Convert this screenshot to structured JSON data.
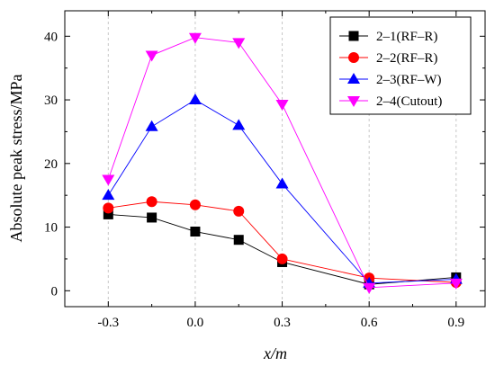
{
  "chart_data": {
    "type": "line",
    "xlabel": "x/m",
    "ylabel": "Absolute peak stress/MPa",
    "xlim": [
      -0.45,
      1.0
    ],
    "ylim": [
      -2.5,
      44
    ],
    "xticks": [
      -0.3,
      0.0,
      0.3,
      0.6,
      0.9
    ],
    "xtick_labels": [
      "-0.3",
      "0.0",
      "0.3",
      "0.6",
      "0.9"
    ],
    "yticks": [
      0,
      10,
      20,
      30,
      40
    ],
    "ytick_labels": [
      "0",
      "10",
      "20",
      "30",
      "40"
    ],
    "x": [
      -0.3,
      -0.15,
      0.0,
      0.15,
      0.3,
      0.6,
      0.9
    ],
    "grid": "vertical dashed at x ticks",
    "legend_position": "top-right",
    "series": [
      {
        "name": "2–1(RF–R)",
        "color": "#000000",
        "marker": "square",
        "values": [
          12.0,
          11.5,
          9.3,
          8.0,
          4.5,
          1.0,
          2.1
        ]
      },
      {
        "name": "2–2(RF–R)",
        "color": "#ff0000",
        "marker": "circle",
        "values": [
          13.0,
          14.0,
          13.5,
          12.5,
          5.0,
          2.0,
          1.3
        ]
      },
      {
        "name": "2–3(RF–W)",
        "color": "#0000ff",
        "marker": "triangle-up",
        "values": [
          15.0,
          25.8,
          30.0,
          26.0,
          16.8,
          1.2,
          1.8
        ]
      },
      {
        "name": "2–4(Cutout)",
        "color": "#ff00ff",
        "marker": "triangle-down",
        "values": [
          17.5,
          37.0,
          39.8,
          39.0,
          29.3,
          0.5,
          1.2
        ]
      }
    ]
  }
}
